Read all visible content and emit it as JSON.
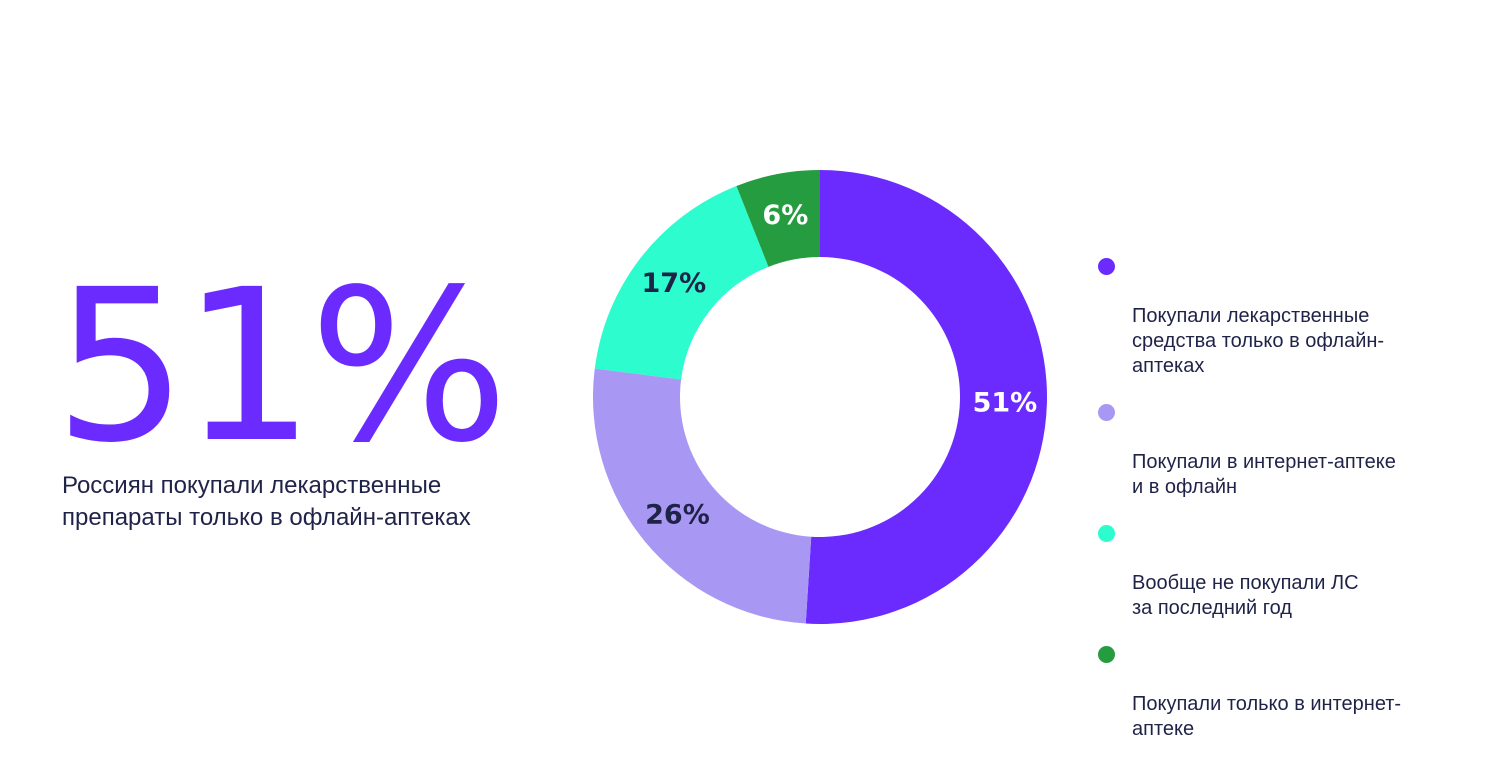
{
  "headline": {
    "stat": "51%",
    "caption": "Россиян покупали лекарственные\nпрепараты только в офлайн-аптеках"
  },
  "chart_data": {
    "type": "pie",
    "variant": "donut",
    "start_angle": "12 o'clock",
    "direction": "clockwise",
    "series": [
      {
        "legend": "Покупали лекарственные\nсредства только в офлайн-\nаптеках",
        "label": "51%",
        "value": 51,
        "color": "#6b2bff",
        "label_color": "#ffffff"
      },
      {
        "legend": "Покупали в интернет-аптеке\nи в офлайн",
        "label": "26%",
        "value": 26,
        "color": "#a898f4",
        "label_color": "#1f2348"
      },
      {
        "legend": "Вообще не покупали ЛС\nза последний год",
        "label": "17%",
        "value": 17,
        "color": "#2cfcce",
        "label_color": "#1f2348"
      },
      {
        "legend": "Покупали только в интернет-\nаптеке",
        "label": "6%",
        "value": 6,
        "color": "#249c3f",
        "label_color": "#ffffff"
      }
    ]
  }
}
